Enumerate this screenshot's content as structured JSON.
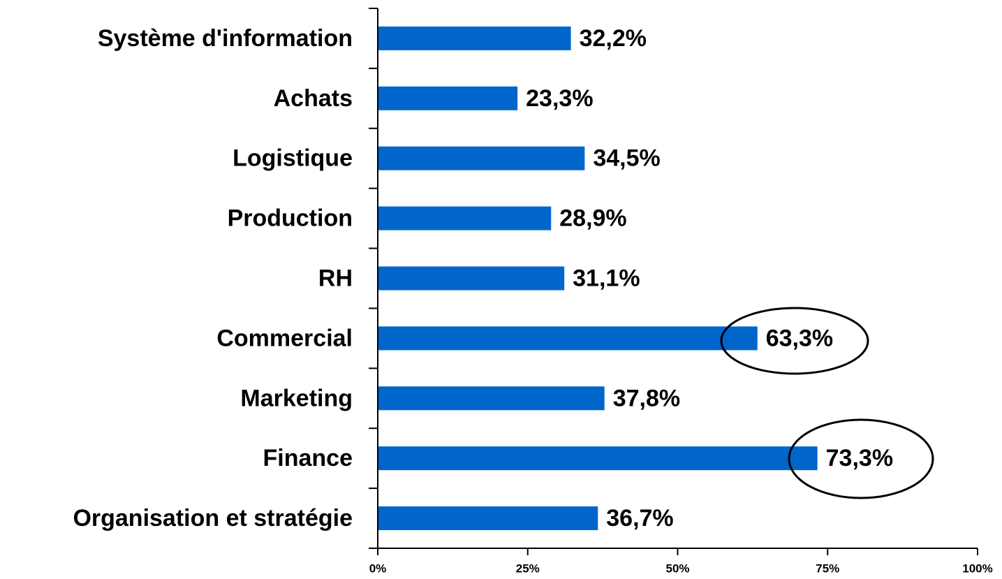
{
  "chart_data": {
    "type": "barh",
    "categories": [
      "Système d'information",
      "Achats",
      "Logistique",
      "Production",
      "RH",
      "Commercial",
      "Marketing",
      "Finance",
      "Organisation et stratégie"
    ],
    "values": [
      32.2,
      23.3,
      34.5,
      28.9,
      31.1,
      63.3,
      37.8,
      73.3,
      36.7
    ],
    "value_labels": [
      "32,2%",
      "23,3%",
      "34,5%",
      "28,9%",
      "31,1%",
      "63,3%",
      "37,8%",
      "73,3%",
      "36,7%"
    ],
    "color": "#0066cc",
    "xlim": [
      0,
      100
    ],
    "xticks": [
      {
        "value": 0,
        "label": "0%"
      },
      {
        "value": 25,
        "label": "25%"
      },
      {
        "value": 50,
        "label": "50%"
      },
      {
        "value": 75,
        "label": "75%"
      },
      {
        "value": 100,
        "label": "100%"
      }
    ]
  }
}
